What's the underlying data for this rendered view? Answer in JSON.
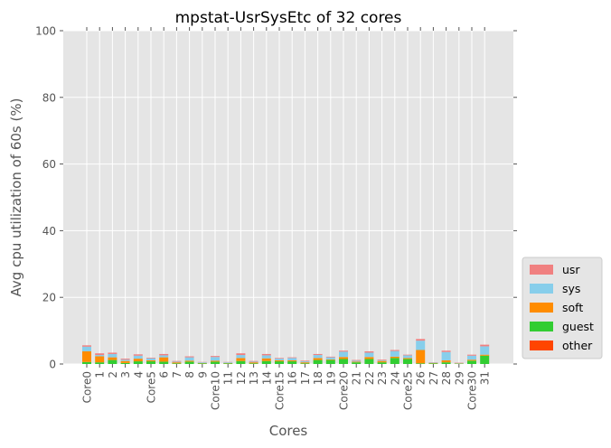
{
  "chart_data": {
    "type": "bar",
    "stacked": true,
    "title": "mpstat-UsrSysEtc of 32 cores",
    "xlabel": "Cores",
    "ylabel": "Avg cpu utilization of 60s (%)",
    "ylim": [
      0,
      100
    ],
    "yticks": [
      0,
      20,
      40,
      60,
      80,
      100
    ],
    "grid": true,
    "legend_position": "right-bottom",
    "categories": [
      "Core0",
      "1",
      "2",
      "3",
      "4",
      "Core5",
      "6",
      "7",
      "8",
      "9",
      "Core10",
      "11",
      "12",
      "13",
      "14",
      "Core15",
      "16",
      "17",
      "18",
      "19",
      "Core20",
      "21",
      "22",
      "23",
      "24",
      "Core25",
      "26",
      "27",
      "28",
      "29",
      "Core30",
      "31"
    ],
    "series": [
      {
        "name": "other",
        "color": "#ff4500",
        "values": [
          0,
          0,
          0,
          0,
          0,
          0,
          0,
          0,
          0,
          0,
          0,
          0,
          0,
          0,
          0,
          0,
          0,
          0,
          0,
          0,
          0,
          0,
          0,
          0,
          0,
          0,
          0,
          0,
          0,
          0,
          0,
          0
        ]
      },
      {
        "name": "guest",
        "color": "#32cd32",
        "values": [
          0.6,
          0.5,
          1.2,
          0.3,
          0.8,
          0.8,
          0.7,
          0.2,
          0.7,
          0.2,
          0.7,
          0.2,
          0.9,
          0.2,
          0.9,
          0.8,
          0.8,
          0.2,
          1.2,
          1.2,
          1.5,
          0.5,
          1.5,
          0.5,
          1.8,
          1.5,
          0.2,
          0.2,
          0.5,
          0.1,
          1.0,
          2.5
        ]
      },
      {
        "name": "soft",
        "color": "#ff8c00",
        "values": [
          3.2,
          1.8,
          0.8,
          0.6,
          0.8,
          0.3,
          1.3,
          0.3,
          0.3,
          0.1,
          0.3,
          0.1,
          0.9,
          0.3,
          0.8,
          0.3,
          0.3,
          0.3,
          0.6,
          0.2,
          0.6,
          0.2,
          0.6,
          0.4,
          0.4,
          0.3,
          4.0,
          0.1,
          0.6,
          0.1,
          0.3,
          0.3
        ]
      },
      {
        "name": "sys",
        "color": "#87ceeb",
        "values": [
          1.4,
          0.4,
          1.0,
          0.4,
          0.9,
          0.6,
          0.6,
          0.2,
          1.0,
          0.2,
          1.1,
          0.2,
          0.9,
          0.2,
          0.9,
          0.5,
          0.7,
          0.3,
          0.9,
          0.6,
          1.6,
          0.3,
          1.3,
          0.2,
          1.7,
          0.8,
          2.8,
          0.1,
          2.5,
          0.1,
          1.2,
          2.5
        ]
      },
      {
        "name": "usr",
        "color": "#f08080",
        "values": [
          0.4,
          0.5,
          0.4,
          0.3,
          0.4,
          0.2,
          0.4,
          0.2,
          0.3,
          0.1,
          0.3,
          0.1,
          0.5,
          0.2,
          0.4,
          0.2,
          0.2,
          0.2,
          0.3,
          0.2,
          0.3,
          0.2,
          0.4,
          0.2,
          0.3,
          0.2,
          0.5,
          0.1,
          0.4,
          0.1,
          0.3,
          0.5
        ]
      }
    ],
    "legend_order": [
      "usr",
      "sys",
      "soft",
      "guest",
      "other"
    ]
  },
  "colors": {
    "plot_background": "#e5e5e5",
    "grid": "#ffffff",
    "legend_background": "#e5e5e5"
  }
}
